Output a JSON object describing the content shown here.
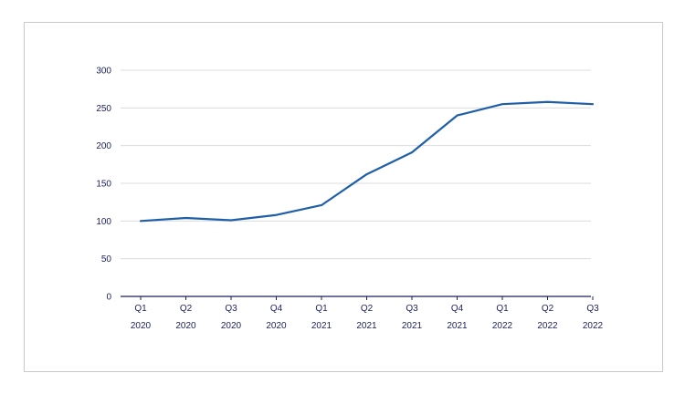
{
  "chart_data": {
    "type": "line",
    "title": "",
    "xlabel": "",
    "ylabel": "",
    "ylim": [
      0,
      300
    ],
    "yticks": [
      "0",
      "50",
      "100",
      "150",
      "200",
      "250",
      "300"
    ],
    "grid": true,
    "legend": "none",
    "categories": [
      [
        "Q1",
        "2020"
      ],
      [
        "Q2",
        "2020"
      ],
      [
        "Q3",
        "2020"
      ],
      [
        "Q4",
        "2020"
      ],
      [
        "Q1",
        "2021"
      ],
      [
        "Q2",
        "2021"
      ],
      [
        "Q3",
        "2021"
      ],
      [
        "Q4",
        "2021"
      ],
      [
        "Q1",
        "2022"
      ],
      [
        "Q2",
        "2022"
      ],
      [
        "Q3",
        "2022"
      ]
    ],
    "series": [
      {
        "values": [
          100,
          104,
          101,
          108,
          121,
          162,
          191,
          240,
          255,
          258,
          255
        ]
      }
    ],
    "colors": {
      "line": "#1f5faa",
      "axis": "#1b1f5c",
      "grid": "#dcdcdc",
      "text": "#1b1f5c"
    }
  }
}
